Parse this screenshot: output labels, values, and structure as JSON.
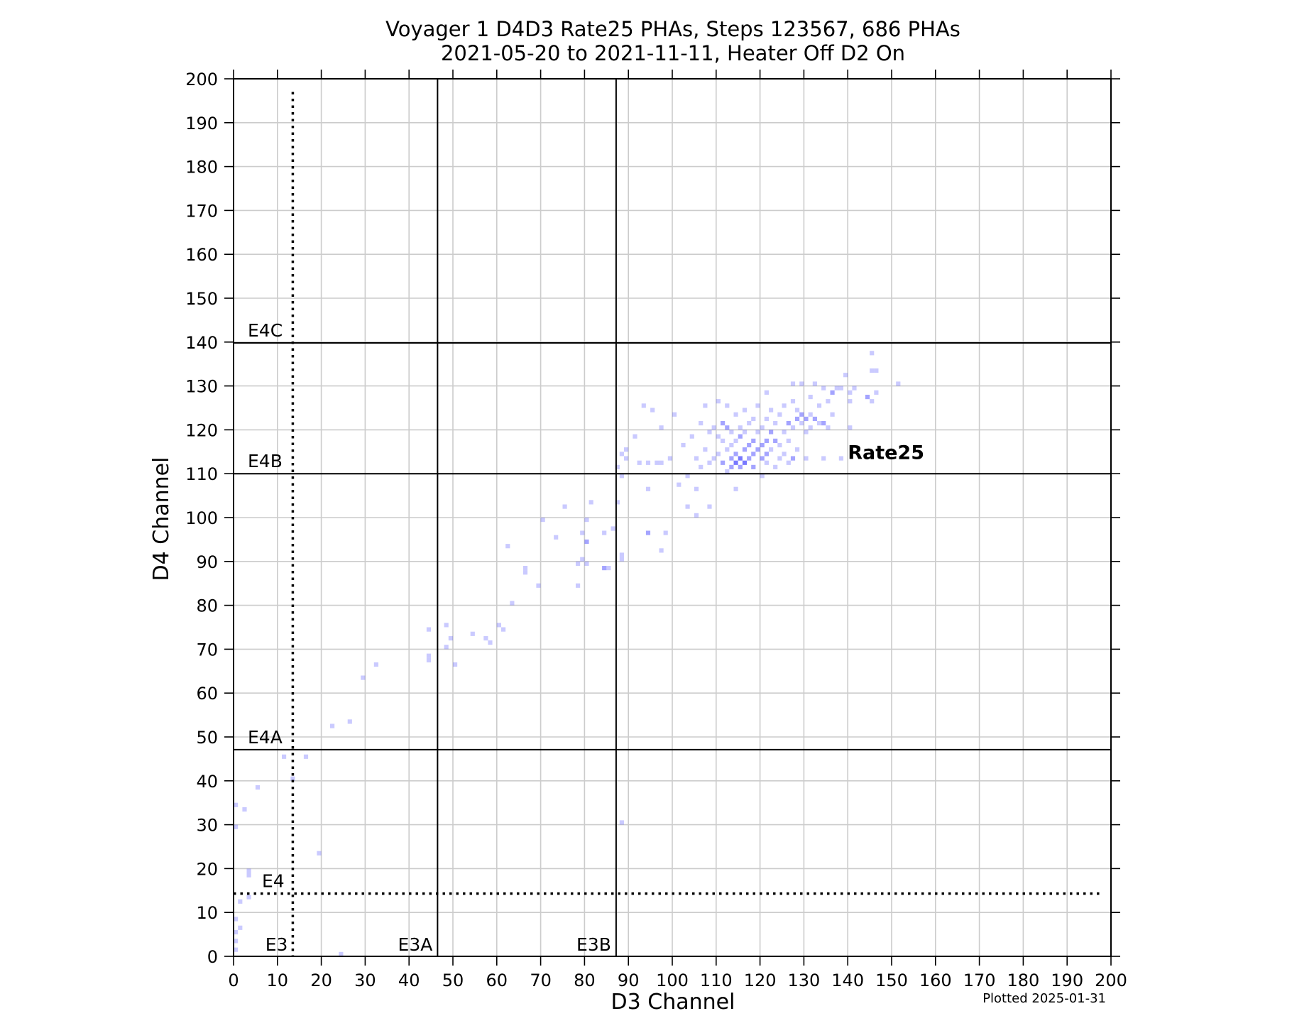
{
  "chart_data": {
    "type": "heatmap",
    "title": "Voyager 1 D4D3 Rate25 PHAs, Steps 123567, 686 PHAs",
    "subtitle": "2021-05-20 to 2021-11-11, Heater Off D2 On",
    "xlabel": "D3 Channel",
    "ylabel": "D4 Channel",
    "xlim": [
      0,
      200
    ],
    "ylim": [
      0,
      200
    ],
    "x_ticks": [
      "0",
      "10",
      "20",
      "30",
      "40",
      "50",
      "60",
      "70",
      "80",
      "90",
      "100",
      "110",
      "120",
      "130",
      "140",
      "150",
      "160",
      "170",
      "180",
      "190",
      "200"
    ],
    "y_ticks": [
      "0",
      "10",
      "20",
      "30",
      "40",
      "50",
      "60",
      "70",
      "80",
      "90",
      "100",
      "110",
      "120",
      "130",
      "140",
      "150",
      "160",
      "170",
      "180",
      "190",
      "200"
    ],
    "grid": true,
    "footer": "Plotted 2025-01-31",
    "colors": {
      "cell": "#4040ff",
      "line": "#000000",
      "grid": "#cccccc"
    },
    "boundaries": {
      "vertical": [
        {
          "x": 13.5,
          "style": "dotted",
          "label": "E3"
        },
        {
          "x": 46.5,
          "style": "solid",
          "label": "E3A"
        },
        {
          "x": 87.2,
          "style": "solid",
          "label": "E3B"
        }
      ],
      "horizontal": [
        {
          "y": 14.3,
          "style": "dotted",
          "label": "E4"
        },
        {
          "y": 47.1,
          "style": "solid",
          "label": "E4A"
        },
        {
          "y": 110,
          "style": "solid",
          "label": "E4B"
        },
        {
          "y": 139.8,
          "style": "solid",
          "label": "E4C"
        }
      ]
    },
    "annotations": [
      {
        "text": "Rate25",
        "x": 140,
        "y": 115
      }
    ],
    "points": [
      [
        0,
        1,
        1
      ],
      [
        0,
        3,
        1
      ],
      [
        0,
        5,
        1
      ],
      [
        1,
        6,
        1
      ],
      [
        0,
        8,
        1
      ],
      [
        1,
        12,
        1
      ],
      [
        3,
        13,
        1
      ],
      [
        3,
        18,
        1
      ],
      [
        3,
        19,
        1
      ],
      [
        0,
        29,
        1
      ],
      [
        0,
        34,
        1
      ],
      [
        2,
        33,
        1
      ],
      [
        5,
        38,
        1
      ],
      [
        11,
        45,
        1
      ],
      [
        13,
        40,
        1
      ],
      [
        16,
        45,
        1
      ],
      [
        19,
        23,
        1
      ],
      [
        24,
        0,
        1
      ],
      [
        22,
        52,
        1
      ],
      [
        26,
        53,
        1
      ],
      [
        29,
        63,
        1
      ],
      [
        32,
        66,
        1
      ],
      [
        44,
        67,
        1
      ],
      [
        44,
        68,
        1
      ],
      [
        44,
        74,
        1
      ],
      [
        48,
        70,
        1
      ],
      [
        48,
        75,
        1
      ],
      [
        49,
        72,
        1
      ],
      [
        50,
        66,
        1
      ],
      [
        54,
        73,
        1
      ],
      [
        57,
        72,
        1
      ],
      [
        58,
        71,
        1
      ],
      [
        60,
        75,
        1
      ],
      [
        61,
        74,
        1
      ],
      [
        62,
        93,
        1
      ],
      [
        63,
        80,
        1
      ],
      [
        66,
        87,
        1
      ],
      [
        66,
        88,
        1
      ],
      [
        69,
        84,
        1
      ],
      [
        70,
        99,
        1
      ],
      [
        73,
        95,
        1
      ],
      [
        75,
        102,
        1
      ],
      [
        78,
        84,
        1
      ],
      [
        78,
        89,
        1
      ],
      [
        79,
        90,
        1
      ],
      [
        79,
        96,
        1
      ],
      [
        80,
        94,
        2
      ],
      [
        80,
        99,
        1
      ],
      [
        80,
        89,
        1
      ],
      [
        81,
        103,
        1
      ],
      [
        84,
        88,
        2
      ],
      [
        84,
        96,
        1
      ],
      [
        85,
        88,
        1
      ],
      [
        86,
        97,
        1
      ],
      [
        87,
        103,
        1
      ],
      [
        88,
        91,
        1
      ],
      [
        88,
        90,
        1
      ],
      [
        88,
        30,
        1
      ],
      [
        87,
        111,
        1
      ],
      [
        88,
        114,
        1
      ],
      [
        89,
        113,
        1
      ],
      [
        88,
        109,
        1
      ],
      [
        89,
        115,
        1
      ],
      [
        91,
        118,
        1
      ],
      [
        92,
        112,
        1
      ],
      [
        93,
        125,
        1
      ],
      [
        94,
        112,
        1
      ],
      [
        94,
        106,
        1
      ],
      [
        94,
        96,
        2
      ],
      [
        95,
        124,
        1
      ],
      [
        96,
        112,
        1
      ],
      [
        97,
        120,
        1
      ],
      [
        97,
        112,
        1
      ],
      [
        98,
        96,
        1
      ],
      [
        97,
        92,
        1
      ],
      [
        99,
        113,
        1
      ],
      [
        100,
        123,
        1
      ],
      [
        101,
        107,
        1
      ],
      [
        102,
        116,
        1
      ],
      [
        103,
        102,
        1
      ],
      [
        103,
        109,
        1
      ],
      [
        104,
        118,
        1
      ],
      [
        105,
        106,
        1
      ],
      [
        105,
        113,
        1
      ],
      [
        105,
        100,
        1
      ],
      [
        106,
        121,
        1
      ],
      [
        106,
        111,
        1
      ],
      [
        107,
        125,
        1
      ],
      [
        107,
        115,
        1
      ],
      [
        108,
        112,
        1
      ],
      [
        108,
        119,
        1
      ],
      [
        108,
        102,
        1
      ],
      [
        109,
        113,
        1
      ],
      [
        109,
        120,
        1
      ],
      [
        110,
        114,
        1
      ],
      [
        110,
        118,
        1
      ],
      [
        110,
        126,
        1
      ],
      [
        111,
        112,
        2
      ],
      [
        111,
        117,
        1
      ],
      [
        111,
        121,
        2
      ],
      [
        112,
        110,
        1
      ],
      [
        112,
        115,
        1
      ],
      [
        112,
        120,
        2
      ],
      [
        112,
        125,
        1
      ],
      [
        113,
        111,
        2
      ],
      [
        113,
        113,
        2
      ],
      [
        113,
        116,
        1
      ],
      [
        113,
        119,
        1
      ],
      [
        114,
        112,
        3
      ],
      [
        114,
        114,
        2
      ],
      [
        114,
        117,
        1
      ],
      [
        114,
        123,
        1
      ],
      [
        114,
        106,
        1
      ],
      [
        115,
        111,
        2
      ],
      [
        115,
        113,
        3
      ],
      [
        115,
        118,
        2
      ],
      [
        115,
        120,
        1
      ],
      [
        116,
        112,
        3
      ],
      [
        116,
        115,
        2
      ],
      [
        116,
        119,
        1
      ],
      [
        116,
        124,
        1
      ],
      [
        117,
        113,
        2
      ],
      [
        117,
        116,
        2
      ],
      [
        117,
        121,
        1
      ],
      [
        118,
        111,
        2
      ],
      [
        118,
        114,
        2
      ],
      [
        118,
        117,
        2
      ],
      [
        118,
        122,
        1
      ],
      [
        119,
        115,
        2
      ],
      [
        119,
        119,
        1
      ],
      [
        119,
        125,
        1
      ],
      [
        120,
        113,
        2
      ],
      [
        120,
        116,
        2
      ],
      [
        120,
        109,
        1
      ],
      [
        120,
        120,
        1
      ],
      [
        121,
        112,
        1
      ],
      [
        121,
        114,
        2
      ],
      [
        121,
        117,
        2
      ],
      [
        121,
        122,
        1
      ],
      [
        121,
        128,
        1
      ],
      [
        122,
        115,
        1
      ],
      [
        122,
        119,
        2
      ],
      [
        122,
        124,
        1
      ],
      [
        123,
        111,
        1
      ],
      [
        123,
        117,
        2
      ],
      [
        123,
        121,
        1
      ],
      [
        124,
        113,
        1
      ],
      [
        124,
        116,
        1
      ],
      [
        124,
        123,
        1
      ],
      [
        125,
        114,
        1
      ],
      [
        125,
        119,
        1
      ],
      [
        125,
        125,
        1
      ],
      [
        126,
        112,
        1
      ],
      [
        126,
        117,
        1
      ],
      [
        126,
        121,
        2
      ],
      [
        127,
        113,
        2
      ],
      [
        127,
        120,
        1
      ],
      [
        127,
        126,
        1
      ],
      [
        127,
        130,
        1
      ],
      [
        128,
        122,
        2
      ],
      [
        128,
        115,
        1
      ],
      [
        128,
        124,
        1
      ],
      [
        129,
        121,
        1
      ],
      [
        129,
        123,
        2
      ],
      [
        129,
        130,
        1
      ],
      [
        130,
        113,
        1
      ],
      [
        130,
        119,
        1
      ],
      [
        130,
        122,
        2
      ],
      [
        131,
        120,
        1
      ],
      [
        131,
        123,
        1
      ],
      [
        131,
        127,
        1
      ],
      [
        132,
        122,
        2
      ],
      [
        132,
        130,
        1
      ],
      [
        133,
        121,
        1
      ],
      [
        133,
        125,
        1
      ],
      [
        134,
        121,
        2
      ],
      [
        134,
        129,
        1
      ],
      [
        134,
        113,
        1
      ],
      [
        135,
        126,
        1
      ],
      [
        135,
        120,
        1
      ],
      [
        136,
        128,
        2
      ],
      [
        136,
        123,
        1
      ],
      [
        137,
        129,
        1
      ],
      [
        138,
        113,
        1
      ],
      [
        138,
        129,
        1
      ],
      [
        139,
        132,
        1
      ],
      [
        140,
        128,
        1
      ],
      [
        140,
        126,
        1
      ],
      [
        140,
        120,
        1
      ],
      [
        141,
        129,
        1
      ],
      [
        144,
        127,
        2
      ],
      [
        145,
        137,
        1
      ],
      [
        145,
        133,
        1
      ],
      [
        145,
        126,
        1
      ],
      [
        146,
        128,
        1
      ],
      [
        146,
        133,
        1
      ],
      [
        151,
        130,
        1
      ]
    ]
  }
}
